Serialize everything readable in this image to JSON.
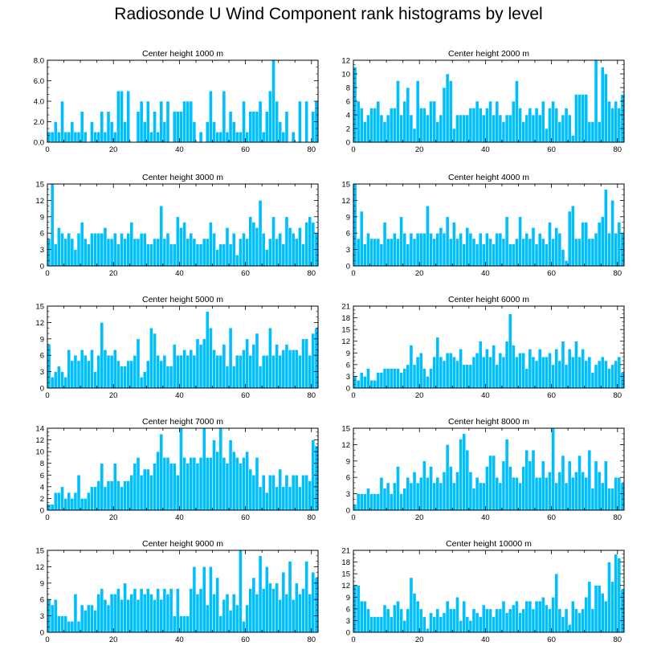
{
  "title": "Radiosonde U Wind Component rank histograms by level",
  "colors": {
    "bar": "#00bfff",
    "bar_edge": "#ffffff",
    "axis": "#000000"
  },
  "chart_data": [
    {
      "type": "bar",
      "title": "Center height 1000 m",
      "xlim": [
        0,
        82
      ],
      "ylim": [
        0,
        8
      ],
      "yticks": [
        0,
        2,
        4,
        6,
        8
      ],
      "ytick_labels": [
        "0.0",
        "2.0",
        "4.0",
        "6.0",
        "8.0"
      ],
      "xticks": [
        0,
        20,
        40,
        60,
        80
      ],
      "ylabel_side": "left",
      "values": [
        1,
        1,
        2,
        1,
        4,
        1,
        1,
        2,
        1,
        1,
        3,
        1,
        0,
        2,
        1,
        1,
        3,
        1,
        3,
        2,
        1,
        5,
        5,
        2,
        5,
        0,
        0,
        3,
        4,
        2,
        4,
        1,
        3,
        1,
        4,
        2,
        4,
        0,
        3,
        3,
        3,
        4,
        4,
        4,
        2,
        0,
        1,
        0,
        2,
        5,
        2,
        1,
        1,
        5,
        1,
        3,
        2,
        1,
        1,
        4,
        1,
        3,
        3,
        3,
        4,
        1,
        3,
        5,
        8,
        4,
        2,
        1,
        3,
        0,
        1,
        0,
        4,
        0,
        4,
        0,
        3,
        4
      ]
    },
    {
      "type": "bar",
      "title": "Center height 2000 m",
      "xlim": [
        0,
        82
      ],
      "ylim": [
        0,
        12
      ],
      "yticks": [
        0,
        2,
        4,
        6,
        8,
        10,
        12
      ],
      "ytick_labels": [
        "0",
        "2",
        "4",
        "6",
        "8",
        "10",
        "12"
      ],
      "xticks": [
        0,
        20,
        40,
        60,
        80
      ],
      "ylabel_side": "right",
      "values": [
        11,
        6,
        5,
        3,
        4,
        5,
        5,
        6,
        4,
        3,
        4,
        5,
        5,
        9,
        4,
        6,
        8,
        4,
        2,
        9,
        5,
        5,
        4,
        6,
        6,
        3,
        4,
        8,
        10,
        9,
        2,
        4,
        4,
        4,
        4,
        5,
        5,
        6,
        5,
        4,
        5,
        6,
        4,
        6,
        4,
        3,
        4,
        4,
        6,
        9,
        5,
        3,
        4,
        5,
        4,
        5,
        4,
        6,
        2,
        5,
        6,
        5,
        3,
        4,
        5,
        4,
        1,
        7,
        7,
        7,
        7,
        3,
        3,
        12,
        3,
        11,
        10,
        6,
        5,
        6,
        5,
        7
      ]
    },
    {
      "type": "bar",
      "title": "Center height 3000 m",
      "xlim": [
        0,
        82
      ],
      "ylim": [
        0,
        15
      ],
      "yticks": [
        0,
        3,
        6,
        9,
        12,
        15
      ],
      "ytick_labels": [
        "0",
        "3",
        "6",
        "9",
        "12",
        "15"
      ],
      "xticks": [
        0,
        20,
        40,
        60,
        80
      ],
      "ylabel_side": "left",
      "values": [
        5,
        15,
        4,
        7,
        6,
        5,
        6,
        5,
        3,
        6,
        8,
        5,
        4,
        6,
        6,
        6,
        6,
        7,
        5,
        5,
        6,
        4,
        6,
        5,
        6,
        8,
        5,
        5,
        6,
        6,
        4,
        4,
        5,
        5,
        11,
        5,
        6,
        4,
        4,
        9,
        7,
        8,
        5,
        6,
        5,
        4,
        4,
        5,
        5,
        8,
        6,
        3,
        4,
        4,
        7,
        4,
        6,
        2,
        5,
        6,
        5,
        9,
        8,
        7,
        12,
        6,
        3,
        5,
        9,
        5,
        6,
        4,
        9,
        7,
        6,
        5,
        7,
        4,
        8,
        9,
        8,
        6
      ]
    },
    {
      "type": "bar",
      "title": "Center height 4000 m",
      "xlim": [
        0,
        82
      ],
      "ylim": [
        0,
        15
      ],
      "yticks": [
        0,
        3,
        6,
        9,
        12,
        15
      ],
      "ytick_labels": [
        "0",
        "3",
        "6",
        "9",
        "12",
        "15"
      ],
      "xticks": [
        0,
        20,
        40,
        60,
        80
      ],
      "ylabel_side": "right",
      "values": [
        15,
        5,
        10,
        4,
        6,
        5,
        5,
        5,
        4,
        8,
        5,
        5,
        6,
        5,
        9,
        6,
        4,
        6,
        5,
        6,
        6,
        6,
        11,
        6,
        5,
        6,
        7,
        6,
        9,
        5,
        8,
        5,
        6,
        4,
        7,
        6,
        5,
        4,
        6,
        4,
        6,
        5,
        4,
        6,
        6,
        5,
        9,
        4,
        4,
        5,
        9,
        5,
        6,
        5,
        7,
        4,
        6,
        5,
        4,
        8,
        5,
        7,
        6,
        3,
        1,
        10,
        11,
        5,
        5,
        8,
        8,
        5,
        5,
        6,
        8,
        9,
        14,
        6,
        12,
        6,
        8,
        6
      ]
    },
    {
      "type": "bar",
      "title": "Center height 5000 m",
      "xlim": [
        0,
        82
      ],
      "ylim": [
        0,
        15
      ],
      "yticks": [
        0,
        3,
        6,
        9,
        12,
        15
      ],
      "ytick_labels": [
        "0",
        "3",
        "6",
        "9",
        "12",
        "15"
      ],
      "xticks": [
        0,
        20,
        40,
        60,
        80
      ],
      "ylabel_side": "left",
      "values": [
        8,
        2,
        3,
        4,
        3,
        2,
        7,
        5,
        6,
        5,
        7,
        6,
        5,
        7,
        3,
        6,
        12,
        7,
        6,
        6,
        7,
        5,
        4,
        4,
        5,
        5,
        6,
        9,
        2,
        3,
        5,
        11,
        10,
        6,
        5,
        6,
        4,
        4,
        8,
        6,
        6,
        7,
        6,
        7,
        6,
        9,
        8,
        9,
        14,
        11,
        7,
        6,
        6,
        8,
        4,
        11,
        4,
        6,
        6,
        7,
        9,
        6,
        8,
        10,
        4,
        6,
        6,
        11,
        6,
        8,
        6,
        7,
        8,
        7,
        7,
        7,
        6,
        9,
        9,
        6,
        10,
        11
      ]
    },
    {
      "type": "bar",
      "title": "Center height 6000 m",
      "xlim": [
        0,
        82
      ],
      "ylim": [
        0,
        21
      ],
      "yticks": [
        0,
        3,
        6,
        9,
        12,
        15,
        18,
        21
      ],
      "ytick_labels": [
        "0",
        "3",
        "6",
        "9",
        "12",
        "15",
        "18",
        "21"
      ],
      "xticks": [
        0,
        20,
        40,
        60,
        80
      ],
      "ylabel_side": "right",
      "values": [
        3,
        2,
        4,
        3,
        5,
        2,
        2,
        4,
        4,
        5,
        5,
        5,
        5,
        5,
        4,
        5,
        6,
        11,
        6,
        8,
        9,
        5,
        3,
        5,
        8,
        13,
        8,
        7,
        9,
        9,
        8,
        7,
        10,
        6,
        6,
        6,
        8,
        9,
        12,
        8,
        10,
        8,
        11,
        6,
        9,
        8,
        12,
        19,
        11,
        8,
        9,
        9,
        5,
        10,
        8,
        7,
        10,
        8,
        8,
        9,
        6,
        10,
        7,
        12,
        6,
        10,
        8,
        12,
        8,
        10,
        7,
        8,
        4,
        6,
        7,
        8,
        7,
        5,
        6,
        7,
        8,
        4
      ]
    },
    {
      "type": "bar",
      "title": "Center height 7000 m",
      "xlim": [
        0,
        82
      ],
      "ylim": [
        0,
        14
      ],
      "yticks": [
        0,
        2,
        4,
        6,
        8,
        10,
        12,
        14
      ],
      "ytick_labels": [
        "0",
        "2",
        "4",
        "6",
        "8",
        "10",
        "12",
        "14"
      ],
      "xticks": [
        0,
        20,
        40,
        60,
        80
      ],
      "ylabel_side": "left",
      "values": [
        1,
        1,
        3,
        3,
        4,
        2,
        3,
        2,
        3,
        6,
        2,
        2,
        3,
        4,
        4,
        5,
        8,
        4,
        5,
        5,
        8,
        5,
        4,
        5,
        5,
        6,
        8,
        9,
        6,
        7,
        7,
        6,
        8,
        10,
        13,
        9,
        9,
        8,
        8,
        6,
        14,
        9,
        8,
        9,
        9,
        8,
        9,
        14,
        9,
        9,
        12,
        10,
        14,
        9,
        8,
        12,
        10,
        9,
        8,
        9,
        10,
        7,
        6,
        9,
        4,
        6,
        3,
        6,
        6,
        4,
        7,
        4,
        6,
        4,
        6,
        6,
        4,
        6,
        6,
        5,
        12,
        11
      ]
    },
    {
      "type": "bar",
      "title": "Center height 8000 m",
      "xlim": [
        0,
        82
      ],
      "ylim": [
        0,
        15
      ],
      "yticks": [
        0,
        3,
        6,
        9,
        12,
        15
      ],
      "ytick_labels": [
        "0",
        "3",
        "6",
        "9",
        "12",
        "15"
      ],
      "xticks": [
        0,
        20,
        40,
        60,
        80
      ],
      "ylabel_side": "right",
      "values": [
        1,
        3,
        3,
        3,
        4,
        3,
        3,
        3,
        6,
        4,
        5,
        3,
        5,
        8,
        3,
        4,
        6,
        5,
        7,
        5,
        6,
        9,
        6,
        8,
        5,
        6,
        5,
        7,
        12,
        8,
        5,
        7,
        13,
        14,
        11,
        7,
        4,
        6,
        5,
        5,
        8,
        10,
        10,
        6,
        5,
        9,
        13,
        8,
        6,
        6,
        5,
        8,
        11,
        9,
        11,
        6,
        6,
        9,
        6,
        7,
        15,
        5,
        7,
        10,
        5,
        9,
        6,
        7,
        10,
        7,
        6,
        11,
        4,
        9,
        7,
        5,
        9,
        4,
        4,
        6,
        6,
        5
      ]
    },
    {
      "type": "bar",
      "title": "Center height 9000 m",
      "xlim": [
        0,
        82
      ],
      "ylim": [
        0,
        15
      ],
      "yticks": [
        0,
        3,
        6,
        9,
        12,
        15
      ],
      "ytick_labels": [
        "0",
        "3",
        "6",
        "9",
        "12",
        "15"
      ],
      "xticks": [
        0,
        20,
        40,
        60,
        80
      ],
      "ylabel_side": "left",
      "values": [
        6,
        5,
        6,
        3,
        3,
        3,
        2,
        2,
        7,
        2,
        5,
        4,
        5,
        5,
        4,
        7,
        8,
        6,
        5,
        7,
        7,
        8,
        6,
        9,
        6,
        7,
        8,
        6,
        8,
        7,
        8,
        7,
        6,
        8,
        6,
        8,
        7,
        8,
        3,
        8,
        3,
        3,
        3,
        8,
        12,
        7,
        8,
        12,
        5,
        12,
        7,
        10,
        3,
        6,
        7,
        4,
        7,
        5,
        15,
        2,
        5,
        8,
        10,
        7,
        14,
        8,
        12,
        9,
        8,
        9,
        6,
        11,
        7,
        13,
        6,
        9,
        7,
        8,
        13,
        7,
        11,
        10
      ]
    },
    {
      "type": "bar",
      "title": "Center height 10000 m",
      "xlim": [
        0,
        82
      ],
      "ylim": [
        0,
        21
      ],
      "yticks": [
        0,
        3,
        6,
        9,
        12,
        15,
        18,
        21
      ],
      "ytick_labels": [
        "0",
        "3",
        "6",
        "9",
        "12",
        "15",
        "18",
        "21"
      ],
      "xticks": [
        0,
        20,
        40,
        60,
        80
      ],
      "ylabel_side": "right",
      "values": [
        12,
        12,
        8,
        8,
        6,
        4,
        4,
        4,
        4,
        7,
        6,
        4,
        7,
        8,
        6,
        3,
        6,
        14,
        10,
        8,
        6,
        4,
        1,
        5,
        4,
        6,
        4,
        5,
        8,
        6,
        6,
        9,
        3,
        8,
        4,
        3,
        6,
        5,
        4,
        7,
        6,
        6,
        4,
        6,
        6,
        8,
        5,
        6,
        7,
        8,
        5,
        6,
        8,
        8,
        6,
        8,
        8,
        9,
        7,
        6,
        9,
        15,
        6,
        4,
        6,
        2,
        8,
        6,
        5,
        6,
        9,
        13,
        6,
        12,
        12,
        10,
        8,
        18,
        13,
        20,
        19,
        11
      ]
    }
  ]
}
